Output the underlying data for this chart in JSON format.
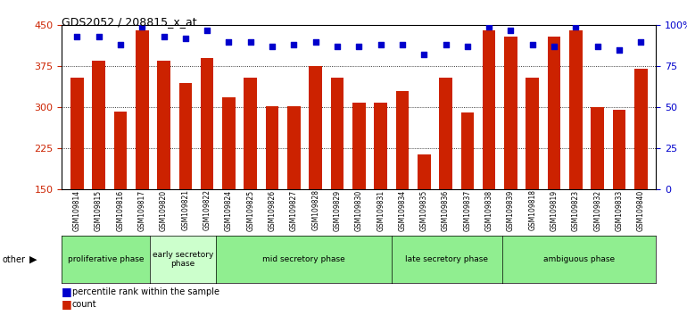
{
  "title": "GDS2052 / 208815_x_at",
  "samples": [
    "GSM109814",
    "GSM109815",
    "GSM109816",
    "GSM109817",
    "GSM109820",
    "GSM109821",
    "GSM109822",
    "GSM109824",
    "GSM109825",
    "GSM109826",
    "GSM109827",
    "GSM109828",
    "GSM109829",
    "GSM109830",
    "GSM109831",
    "GSM109834",
    "GSM109835",
    "GSM109836",
    "GSM109837",
    "GSM109838",
    "GSM109839",
    "GSM109818",
    "GSM109819",
    "GSM109823",
    "GSM109832",
    "GSM109833",
    "GSM109840"
  ],
  "counts": [
    355,
    385,
    292,
    440,
    385,
    345,
    390,
    318,
    355,
    302,
    302,
    375,
    355,
    308,
    308,
    330,
    215,
    355,
    290,
    440,
    430,
    355,
    430,
    440,
    300,
    295,
    370
  ],
  "percentiles": [
    93,
    93,
    88,
    99,
    93,
    92,
    97,
    90,
    90,
    87,
    88,
    90,
    87,
    87,
    88,
    88,
    82,
    88,
    87,
    99,
    97,
    88,
    87,
    99,
    87,
    85,
    90
  ],
  "phases": [
    {
      "label": "proliferative phase",
      "start": 0,
      "end": 4,
      "color": "#90ee90"
    },
    {
      "label": "early secretory\nphase",
      "start": 4,
      "end": 7,
      "color": "#ccffcc"
    },
    {
      "label": "mid secretory phase",
      "start": 7,
      "end": 15,
      "color": "#90ee90"
    },
    {
      "label": "late secretory phase",
      "start": 15,
      "end": 20,
      "color": "#90ee90"
    },
    {
      "label": "ambiguous phase",
      "start": 20,
      "end": 27,
      "color": "#90ee90"
    }
  ],
  "bar_color": "#cc2200",
  "dot_color": "#0000cc",
  "ylim_left": [
    150,
    450
  ],
  "ylim_right": [
    0,
    100
  ],
  "yticks_left": [
    150,
    225,
    300,
    375,
    450
  ],
  "yticks_right": [
    0,
    25,
    50,
    75,
    100
  ],
  "grid_ticks": [
    225,
    300,
    375,
    450
  ],
  "bg_label": "#d3d3d3"
}
